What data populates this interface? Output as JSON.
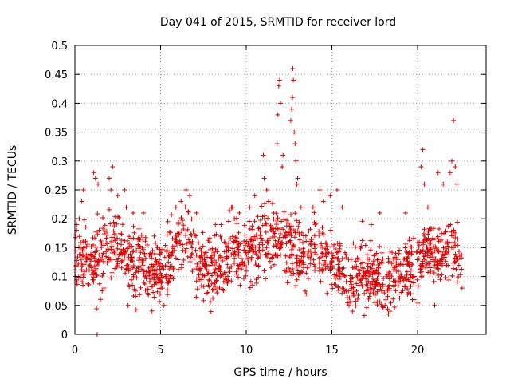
{
  "chart_data": {
    "type": "scatter",
    "title": "Day 041 of 2015, SRMTID for receiver lord",
    "xlabel": "GPS time / hours",
    "ylabel": "SRMTID / TECUs",
    "xlim": [
      0,
      24
    ],
    "ylim": [
      0,
      0.5
    ],
    "x_ticks": [
      0,
      5,
      10,
      15,
      20
    ],
    "x_tick_labels": [
      "0",
      "5",
      "10",
      "15",
      "20"
    ],
    "y_ticks": [
      0,
      0.05,
      0.1,
      0.15,
      0.2,
      0.25,
      0.3,
      0.35,
      0.4,
      0.45,
      0.5
    ],
    "y_tick_labels": [
      "0",
      "0.05",
      "0.1",
      "0.15",
      "0.2",
      "0.25",
      "0.3",
      "0.35",
      "0.4",
      "0.45",
      "0.5"
    ],
    "grid": true,
    "marker": "plus",
    "color": "#e00000",
    "trend": [
      [
        0.0,
        0.14
      ],
      [
        0.5,
        0.13
      ],
      [
        1.0,
        0.12
      ],
      [
        1.5,
        0.13
      ],
      [
        2.0,
        0.17
      ],
      [
        2.5,
        0.15
      ],
      [
        3.0,
        0.13
      ],
      [
        3.5,
        0.12
      ],
      [
        4.0,
        0.12
      ],
      [
        4.5,
        0.11
      ],
      [
        5.0,
        0.11
      ],
      [
        5.5,
        0.13
      ],
      [
        6.0,
        0.16
      ],
      [
        6.5,
        0.18
      ],
      [
        7.0,
        0.13
      ],
      [
        7.5,
        0.11
      ],
      [
        8.0,
        0.11
      ],
      [
        8.5,
        0.12
      ],
      [
        9.0,
        0.14
      ],
      [
        9.5,
        0.14
      ],
      [
        10.0,
        0.14
      ],
      [
        10.5,
        0.15
      ],
      [
        11.0,
        0.16
      ],
      [
        11.5,
        0.17
      ],
      [
        12.0,
        0.16
      ],
      [
        12.5,
        0.16
      ],
      [
        13.0,
        0.15
      ],
      [
        13.5,
        0.13
      ],
      [
        14.0,
        0.15
      ],
      [
        14.5,
        0.14
      ],
      [
        15.0,
        0.12
      ],
      [
        15.5,
        0.12
      ],
      [
        16.0,
        0.08
      ],
      [
        16.5,
        0.11
      ],
      [
        17.0,
        0.11
      ],
      [
        17.5,
        0.1
      ],
      [
        18.0,
        0.09
      ],
      [
        18.5,
        0.1
      ],
      [
        19.0,
        0.11
      ],
      [
        19.5,
        0.12
      ],
      [
        20.0,
        0.12
      ],
      [
        20.5,
        0.15
      ],
      [
        21.0,
        0.13
      ],
      [
        21.5,
        0.14
      ],
      [
        22.0,
        0.15
      ],
      [
        22.5,
        0.12
      ]
    ],
    "peaks": [
      [
        0.1,
        0.19
      ],
      [
        0.25,
        0.2
      ],
      [
        0.4,
        0.23
      ],
      [
        0.5,
        0.25
      ],
      [
        1.1,
        0.28
      ],
      [
        1.2,
        0.27
      ],
      [
        1.3,
        0.0
      ],
      [
        1.35,
        0.26
      ],
      [
        2.0,
        0.27
      ],
      [
        2.1,
        0.25
      ],
      [
        2.2,
        0.29
      ],
      [
        2.5,
        0.24
      ],
      [
        2.9,
        0.25
      ],
      [
        3.0,
        0.22
      ],
      [
        3.1,
        0.05
      ],
      [
        3.4,
        0.21
      ],
      [
        4.0,
        0.21
      ],
      [
        5.1,
        0.08
      ],
      [
        5.2,
        0.05
      ],
      [
        5.9,
        0.22
      ],
      [
        6.2,
        0.23
      ],
      [
        6.5,
        0.25
      ],
      [
        6.7,
        0.24
      ],
      [
        7.1,
        0.21
      ],
      [
        8.2,
        0.19
      ],
      [
        9.2,
        0.22
      ],
      [
        9.6,
        0.21
      ],
      [
        10.2,
        0.22
      ],
      [
        10.5,
        0.24
      ],
      [
        11.0,
        0.31
      ],
      [
        11.05,
        0.27
      ],
      [
        11.2,
        0.25
      ],
      [
        11.3,
        0.23
      ],
      [
        11.6,
        0.21
      ],
      [
        11.8,
        0.33
      ],
      [
        11.85,
        0.38
      ],
      [
        11.9,
        0.43
      ],
      [
        11.95,
        0.44
      ],
      [
        12.0,
        0.4
      ],
      [
        12.1,
        0.29
      ],
      [
        12.15,
        0.31
      ],
      [
        12.4,
        0.09
      ],
      [
        12.6,
        0.37
      ],
      [
        12.65,
        0.39
      ],
      [
        12.7,
        0.41
      ],
      [
        12.72,
        0.46
      ],
      [
        12.75,
        0.44
      ],
      [
        12.8,
        0.35
      ],
      [
        12.85,
        0.33
      ],
      [
        12.9,
        0.3
      ],
      [
        12.95,
        0.26
      ],
      [
        13.0,
        0.27
      ],
      [
        13.2,
        0.22
      ],
      [
        13.5,
        0.07
      ],
      [
        13.9,
        0.22
      ],
      [
        14.3,
        0.25
      ],
      [
        14.5,
        0.23
      ],
      [
        14.9,
        0.24
      ],
      [
        15.3,
        0.25
      ],
      [
        15.6,
        0.22
      ],
      [
        16.0,
        0.05
      ],
      [
        16.2,
        0.04
      ],
      [
        17.3,
        0.19
      ],
      [
        17.8,
        0.21
      ],
      [
        18.1,
        0.05
      ],
      [
        18.3,
        0.035
      ],
      [
        18.4,
        0.04
      ],
      [
        19.3,
        0.21
      ],
      [
        19.8,
        0.06
      ],
      [
        20.2,
        0.29
      ],
      [
        20.3,
        0.32
      ],
      [
        20.4,
        0.26
      ],
      [
        20.6,
        0.22
      ],
      [
        21.0,
        0.05
      ],
      [
        21.2,
        0.28
      ],
      [
        21.5,
        0.26
      ],
      [
        21.9,
        0.28
      ],
      [
        22.0,
        0.3
      ],
      [
        22.1,
        0.37
      ],
      [
        22.2,
        0.29
      ],
      [
        22.3,
        0.26
      ],
      [
        22.6,
        0.08
      ]
    ],
    "scatter_count": 1500,
    "scatter_spread": 0.028,
    "x_range_of_data": [
      0.0,
      22.6
    ]
  }
}
